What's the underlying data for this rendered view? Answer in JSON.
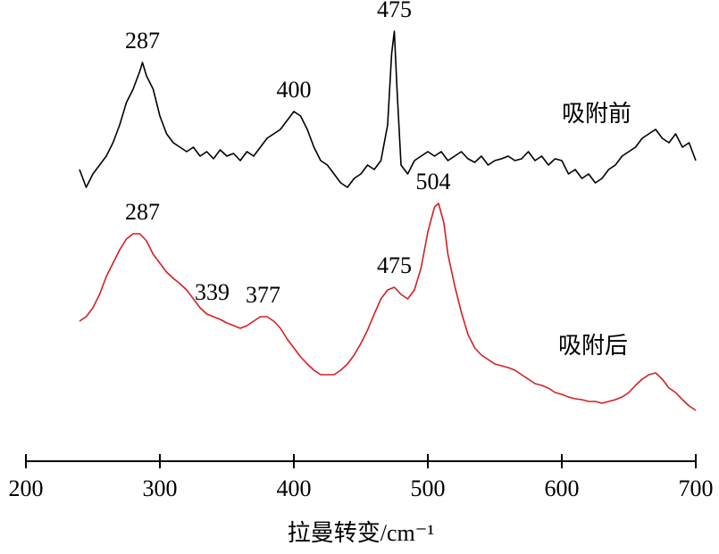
{
  "chart_data": {
    "type": "line",
    "xlabel": "拉曼转变/cm⁻¹",
    "xlim": [
      200,
      700
    ],
    "xticks": [
      200,
      300,
      400,
      500,
      600,
      700
    ],
    "ylim": [
      0,
      517
    ],
    "series": [
      {
        "name": "吸附前",
        "color": "#000000",
        "x": [
          240,
          245,
          250,
          255,
          260,
          265,
          270,
          275,
          280,
          285,
          287,
          290,
          295,
          300,
          305,
          310,
          315,
          320,
          325,
          330,
          335,
          340,
          345,
          350,
          355,
          360,
          365,
          370,
          375,
          380,
          385,
          390,
          395,
          400,
          405,
          410,
          415,
          420,
          425,
          430,
          435,
          440,
          445,
          450,
          455,
          460,
          465,
          470,
          473,
          475,
          477,
          480,
          485,
          490,
          495,
          500,
          505,
          510,
          515,
          520,
          525,
          530,
          535,
          540,
          545,
          550,
          555,
          560,
          565,
          570,
          575,
          580,
          585,
          590,
          595,
          600,
          605,
          610,
          615,
          620,
          625,
          630,
          635,
          640,
          645,
          650,
          655,
          660,
          665,
          670,
          675,
          680,
          685,
          690,
          695,
          700
        ],
        "values": [
          327,
          307,
          322,
          332,
          342,
          357,
          377,
          402,
          417,
          437,
          447,
          432,
          417,
          387,
          367,
          357,
          352,
          347,
          352,
          342,
          347,
          339,
          349,
          342,
          345,
          337,
          347,
          342,
          352,
          362,
          367,
          372,
          382,
          392,
          387,
          372,
          352,
          337,
          332,
          322,
          312,
          307,
          317,
          322,
          332,
          327,
          337,
          377,
          457,
          482,
          417,
          332,
          322,
          337,
          342,
          347,
          342,
          347,
          337,
          342,
          347,
          339,
          335,
          342,
          332,
          337,
          339,
          342,
          337,
          339,
          347,
          337,
          342,
          332,
          339,
          337,
          322,
          327,
          317,
          322,
          312,
          317,
          327,
          332,
          342,
          347,
          352,
          362,
          367,
          372,
          362,
          357,
          367,
          352,
          357,
          337
        ],
        "peaks": [
          287,
          400,
          475
        ]
      },
      {
        "name": "吸附后",
        "color": "#d42020",
        "x": [
          240,
          245,
          250,
          255,
          260,
          265,
          270,
          275,
          280,
          285,
          290,
          295,
          300,
          305,
          310,
          315,
          320,
          325,
          330,
          335,
          340,
          345,
          350,
          355,
          360,
          365,
          370,
          375,
          380,
          385,
          390,
          395,
          400,
          405,
          410,
          415,
          420,
          425,
          430,
          435,
          440,
          445,
          450,
          455,
          460,
          465,
          470,
          475,
          480,
          485,
          490,
          495,
          500,
          505,
          508,
          512,
          515,
          520,
          525,
          530,
          535,
          540,
          545,
          550,
          555,
          560,
          565,
          570,
          575,
          580,
          585,
          590,
          595,
          600,
          605,
          610,
          615,
          620,
          625,
          630,
          635,
          640,
          645,
          650,
          655,
          660,
          665,
          670,
          675,
          680,
          685,
          690,
          695,
          700
        ],
        "values": [
          157,
          162,
          172,
          187,
          207,
          222,
          237,
          249,
          255,
          255,
          247,
          232,
          222,
          212,
          205,
          199,
          192,
          182,
          172,
          165,
          162,
          159,
          155,
          152,
          149,
          152,
          157,
          162,
          162,
          157,
          149,
          137,
          127,
          117,
          109,
          102,
          97,
          97,
          97,
          102,
          109,
          119,
          132,
          147,
          165,
          182,
          192,
          195,
          187,
          182,
          192,
          217,
          257,
          285,
          289,
          267,
          232,
          197,
          167,
          142,
          127,
          119,
          114,
          109,
          107,
          105,
          102,
          97,
          92,
          87,
          85,
          82,
          77,
          75,
          72,
          70,
          69,
          67,
          67,
          65,
          67,
          69,
          72,
          77,
          85,
          92,
          97,
          99,
          92,
          82,
          77,
          69,
          62,
          57
        ],
        "peaks": [
          287,
          339,
          377,
          475,
          504
        ]
      }
    ]
  }
}
